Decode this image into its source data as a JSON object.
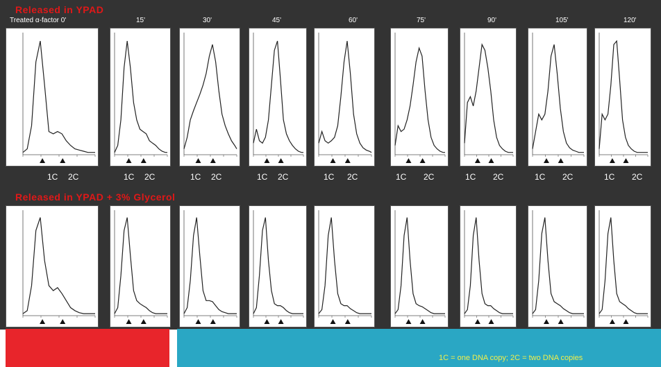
{
  "header_top": "Released in YPAD",
  "header_bottom": "Released in YPAD + 3% Glycerol",
  "timepoints": [
    "Treated α-factor 0'",
    "15'",
    "30'",
    "45'",
    "60'",
    "75'",
    "90'",
    "105'",
    "120'"
  ],
  "cycle_labels": {
    "one": "1C",
    "two": "2C"
  },
  "legend": "1C = one DNA copy; 2C = two DNA copies",
  "colors": {
    "background": "#333333",
    "header": "#e01818",
    "red_bar": "#e8252b",
    "blue_bar": "#2aa7c4",
    "legend_text": "#f1ef4a"
  },
  "chart_data": {
    "type": "line",
    "description_units": "DNA content histograms, relative count (0-1) vs DNA content",
    "x": [
      0,
      0.06,
      0.12,
      0.18,
      0.24,
      0.3,
      0.36,
      0.42,
      0.48,
      0.54,
      0.6,
      0.66,
      0.72,
      0.78,
      0.84,
      0.9,
      0.96,
      1.0
    ],
    "rows": [
      {
        "name": "YPAD",
        "panels": [
          {
            "timepoint": "0'",
            "values": [
              0.02,
              0.05,
              0.25,
              0.8,
              0.98,
              0.6,
              0.2,
              0.18,
              0.2,
              0.18,
              0.12,
              0.08,
              0.05,
              0.04,
              0.03,
              0.02,
              0.02,
              0.02
            ]
          },
          {
            "timepoint": "15'",
            "values": [
              0.02,
              0.08,
              0.3,
              0.75,
              0.98,
              0.75,
              0.45,
              0.3,
              0.22,
              0.2,
              0.18,
              0.12,
              0.1,
              0.08,
              0.05,
              0.03,
              0.02,
              0.02
            ]
          },
          {
            "timepoint": "30'",
            "values": [
              0.05,
              0.15,
              0.3,
              0.38,
              0.45,
              0.52,
              0.6,
              0.7,
              0.85,
              0.95,
              0.8,
              0.55,
              0.35,
              0.25,
              0.18,
              0.12,
              0.08,
              0.05
            ]
          },
          {
            "timepoint": "45'",
            "values": [
              0.1,
              0.22,
              0.12,
              0.1,
              0.15,
              0.3,
              0.6,
              0.9,
              0.98,
              0.65,
              0.3,
              0.18,
              0.12,
              0.08,
              0.05,
              0.03,
              0.02,
              0.02
            ]
          },
          {
            "timepoint": "60'",
            "values": [
              0.1,
              0.2,
              0.12,
              0.1,
              0.12,
              0.15,
              0.25,
              0.5,
              0.8,
              0.98,
              0.7,
              0.35,
              0.18,
              0.1,
              0.06,
              0.04,
              0.03,
              0.02
            ]
          },
          {
            "timepoint": "75'",
            "values": [
              0.08,
              0.25,
              0.2,
              0.22,
              0.3,
              0.42,
              0.6,
              0.8,
              0.92,
              0.85,
              0.55,
              0.3,
              0.15,
              0.08,
              0.05,
              0.03,
              0.02,
              0.02
            ]
          },
          {
            "timepoint": "90'",
            "values": [
              0.1,
              0.45,
              0.5,
              0.42,
              0.55,
              0.75,
              0.95,
              0.9,
              0.75,
              0.55,
              0.3,
              0.15,
              0.08,
              0.05,
              0.03,
              0.02,
              0.02,
              0.02
            ]
          },
          {
            "timepoint": "105'",
            "values": [
              0.05,
              0.2,
              0.35,
              0.3,
              0.35,
              0.55,
              0.85,
              0.95,
              0.7,
              0.4,
              0.2,
              0.1,
              0.06,
              0.04,
              0.03,
              0.02,
              0.02,
              0.02
            ]
          },
          {
            "timepoint": "120'",
            "values": [
              0.05,
              0.35,
              0.3,
              0.35,
              0.6,
              0.95,
              0.98,
              0.65,
              0.3,
              0.15,
              0.08,
              0.05,
              0.03,
              0.02,
              0.02,
              0.02,
              0.02,
              0.02
            ]
          }
        ]
      },
      {
        "name": "YPAD + 3% Glycerol",
        "panels": [
          {
            "timepoint": "0'",
            "values": [
              0.02,
              0.05,
              0.3,
              0.85,
              0.98,
              0.55,
              0.3,
              0.25,
              0.28,
              0.22,
              0.15,
              0.08,
              0.05,
              0.03,
              0.02,
              0.02,
              0.02,
              0.02
            ]
          },
          {
            "timepoint": "15'",
            "values": [
              0.02,
              0.08,
              0.4,
              0.85,
              0.98,
              0.6,
              0.25,
              0.15,
              0.12,
              0.1,
              0.08,
              0.05,
              0.03,
              0.02,
              0.02,
              0.02,
              0.02,
              0.02
            ]
          },
          {
            "timepoint": "30'",
            "values": [
              0.02,
              0.08,
              0.35,
              0.8,
              0.98,
              0.6,
              0.25,
              0.15,
              0.15,
              0.14,
              0.1,
              0.06,
              0.04,
              0.03,
              0.02,
              0.02,
              0.02,
              0.02
            ]
          },
          {
            "timepoint": "45'",
            "values": [
              0.02,
              0.08,
              0.4,
              0.85,
              0.98,
              0.55,
              0.25,
              0.12,
              0.1,
              0.1,
              0.08,
              0.05,
              0.03,
              0.02,
              0.02,
              0.02,
              0.02,
              0.02
            ]
          },
          {
            "timepoint": "60'",
            "values": [
              0.02,
              0.06,
              0.3,
              0.8,
              0.98,
              0.55,
              0.22,
              0.12,
              0.1,
              0.1,
              0.07,
              0.05,
              0.03,
              0.02,
              0.02,
              0.02,
              0.02,
              0.02
            ]
          },
          {
            "timepoint": "75'",
            "values": [
              0.02,
              0.06,
              0.3,
              0.8,
              0.98,
              0.55,
              0.22,
              0.12,
              0.1,
              0.09,
              0.07,
              0.05,
              0.03,
              0.02,
              0.02,
              0.02,
              0.02,
              0.02
            ]
          },
          {
            "timepoint": "90'",
            "values": [
              0.02,
              0.06,
              0.3,
              0.8,
              0.98,
              0.55,
              0.22,
              0.12,
              0.1,
              0.1,
              0.07,
              0.05,
              0.03,
              0.02,
              0.02,
              0.02,
              0.02,
              0.02
            ]
          },
          {
            "timepoint": "105'",
            "values": [
              0.02,
              0.06,
              0.35,
              0.82,
              0.98,
              0.55,
              0.22,
              0.14,
              0.12,
              0.1,
              0.07,
              0.05,
              0.03,
              0.02,
              0.02,
              0.02,
              0.02,
              0.02
            ]
          },
          {
            "timepoint": "120'",
            "values": [
              0.02,
              0.06,
              0.35,
              0.82,
              0.98,
              0.55,
              0.22,
              0.14,
              0.12,
              0.1,
              0.07,
              0.05,
              0.03,
              0.02,
              0.02,
              0.02,
              0.02,
              0.02
            ]
          }
        ]
      }
    ]
  }
}
